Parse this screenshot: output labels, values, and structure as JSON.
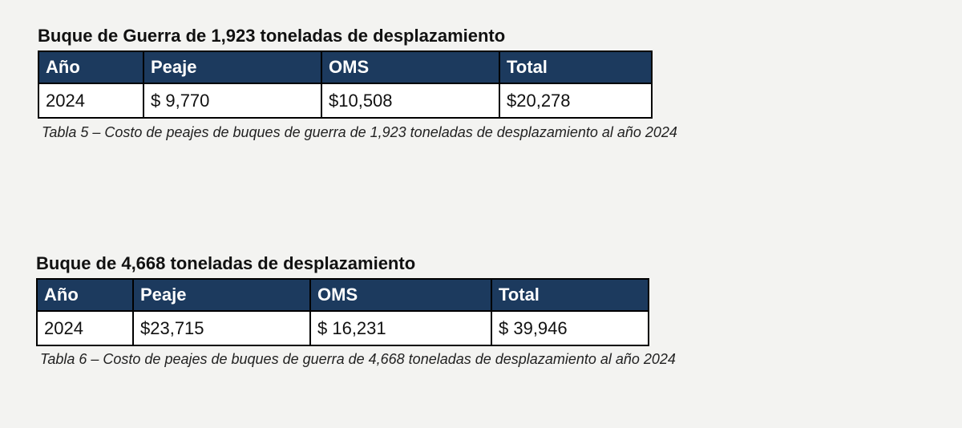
{
  "tables": [
    {
      "title": "Buque de Guerra de 1,923 toneladas de desplazamiento",
      "header": [
        "Año",
        "Peaje",
        "OMS",
        "Total"
      ],
      "rows": [
        [
          "2024",
          "$ 9,770",
          "$10,508",
          "$20,278"
        ]
      ],
      "caption": "Tabla 5 – Costo de peajes de buques de guerra de 1,923 toneladas de desplazamiento al año 2024"
    },
    {
      "title": "Buque de 4,668 toneladas de desplazamiento",
      "header": [
        "Año",
        "Peaje",
        "OMS",
        "Total"
      ],
      "rows": [
        [
          "2024",
          "$23,715",
          "$ 16,231",
          "$ 39,946"
        ]
      ],
      "caption": "Tabla 6 – Costo de peajes de buques de guerra de 4,668 toneladas de desplazamiento al año 2024"
    }
  ]
}
